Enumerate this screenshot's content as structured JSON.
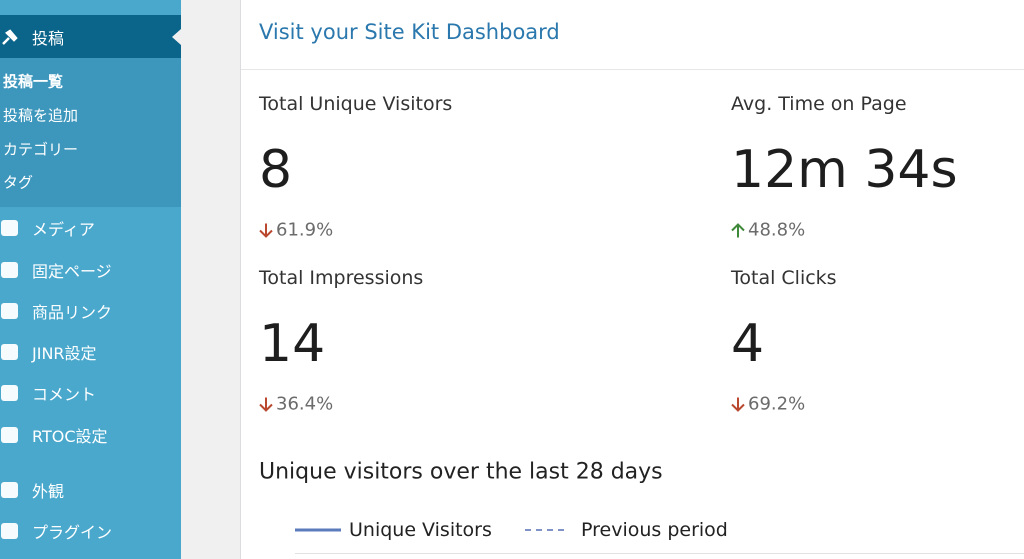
{
  "sidebar": {
    "active_item": "投稿",
    "submenu": [
      "投稿一覧",
      "投稿を追加",
      "カテゴリー",
      "タグ"
    ],
    "items": [
      "メディア",
      "固定ページ",
      "商品リンク",
      "JINR設定",
      "コメント",
      "RTOC設定",
      "外観",
      "プラグイン"
    ]
  },
  "card": {
    "title": "Visit your Site Kit Dashboard",
    "metrics": [
      {
        "label": "Total Unique Visitors",
        "value": "8",
        "change": "61.9%",
        "trend": "down"
      },
      {
        "label": "Avg. Time on Page",
        "value": "12m 34s",
        "change": "48.8%",
        "trend": "up"
      },
      {
        "label": "Total Impressions",
        "value": "14",
        "change": "36.4%",
        "trend": "down"
      },
      {
        "label": "Total Clicks",
        "value": "4",
        "change": "69.2%",
        "trend": "down"
      }
    ],
    "chart_title": "Unique visitors over the last 28 days",
    "legend": [
      "Unique Visitors",
      "Previous period"
    ]
  }
}
